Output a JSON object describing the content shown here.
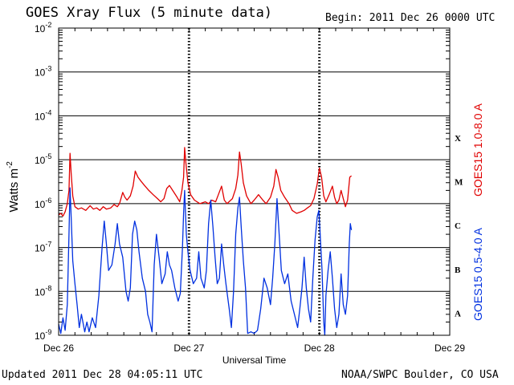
{
  "header": {
    "title": "GOES Xray Flux (5 minute data)",
    "begin": "Begin:  2011 Dec 26 0000 UTC"
  },
  "footer": {
    "updated": "Updated 2011 Dec 28 04:05:11 UTC",
    "credit": "NOAA/SWPC Boulder, CO USA"
  },
  "chart_data": {
    "type": "line",
    "title": "GOES Xray Flux (5 minute data)",
    "xlabel": "Universal Time",
    "ylabel": "Watts m",
    "ylabel_sup": "-2",
    "yscale": "log",
    "ylim": [
      1e-09,
      0.01
    ],
    "xlim": [
      0,
      72
    ],
    "x_unit": "hours since 2011 Dec 26 0000 UTC",
    "x_ticks": [
      {
        "x": 0,
        "label": "Dec 26"
      },
      {
        "x": 24,
        "label": "Dec 27"
      },
      {
        "x": 48,
        "label": "Dec 28"
      },
      {
        "x": 72,
        "label": "Dec 29"
      }
    ],
    "y_ticks": [
      {
        "exp": -2,
        "base": "10",
        "sup": "-2"
      },
      {
        "exp": -3,
        "base": "10",
        "sup": "-3"
      },
      {
        "exp": -4,
        "base": "10",
        "sup": "-4"
      },
      {
        "exp": -5,
        "base": "10",
        "sup": "-5"
      },
      {
        "exp": -6,
        "base": "10",
        "sup": "-6"
      },
      {
        "exp": -7,
        "base": "10",
        "sup": "-7"
      },
      {
        "exp": -8,
        "base": "10",
        "sup": "-8"
      },
      {
        "exp": -9,
        "base": "10",
        "sup": "-9"
      }
    ],
    "flare_classes": [
      {
        "label": "X",
        "exp": -4
      },
      {
        "label": "M",
        "exp": -5
      },
      {
        "label": "C",
        "exp": -6
      },
      {
        "label": "B",
        "exp": -7
      },
      {
        "label": "A",
        "exp": -8
      }
    ],
    "series": [
      {
        "name": "GOES15 1.0-8.0 A",
        "color": "#e00000",
        "points": [
          [
            0.0,
            5.5e-07
          ],
          [
            0.4,
            6e-07
          ],
          [
            0.8,
            5.2e-07
          ],
          [
            1.2,
            6.5e-07
          ],
          [
            1.6,
            1e-06
          ],
          [
            1.9,
            2e-06
          ],
          [
            2.1,
            1.4e-05
          ],
          [
            2.3,
            5e-06
          ],
          [
            2.6,
            1.5e-06
          ],
          [
            3.0,
            8.5e-07
          ],
          [
            3.6,
            7.5e-07
          ],
          [
            4.2,
            8e-07
          ],
          [
            5.0,
            7e-07
          ],
          [
            5.8,
            9e-07
          ],
          [
            6.4,
            7.5e-07
          ],
          [
            7.0,
            8e-07
          ],
          [
            7.6,
            7e-07
          ],
          [
            8.2,
            8.5e-07
          ],
          [
            8.8,
            7.5e-07
          ],
          [
            9.6,
            8e-07
          ],
          [
            10.2,
            9.5e-07
          ],
          [
            10.8,
            8.5e-07
          ],
          [
            11.2,
            1e-06
          ],
          [
            11.8,
            1.8e-06
          ],
          [
            12.2,
            1.4e-06
          ],
          [
            12.6,
            1.2e-06
          ],
          [
            13.2,
            1.5e-06
          ],
          [
            13.7,
            2.5e-06
          ],
          [
            14.1,
            5.5e-06
          ],
          [
            14.6,
            4e-06
          ],
          [
            15.2,
            3.2e-06
          ],
          [
            15.8,
            2.6e-06
          ],
          [
            16.6,
            2e-06
          ],
          [
            17.4,
            1.6e-06
          ],
          [
            18.2,
            1.3e-06
          ],
          [
            18.8,
            1.1e-06
          ],
          [
            19.4,
            1.3e-06
          ],
          [
            19.9,
            2.2e-06
          ],
          [
            20.4,
            2.6e-06
          ],
          [
            21.0,
            2e-06
          ],
          [
            21.8,
            1.4e-06
          ],
          [
            22.3,
            1.1e-06
          ],
          [
            22.7,
            2e-06
          ],
          [
            23.0,
            4e-06
          ],
          [
            23.2,
            1.9e-05
          ],
          [
            23.4,
            9e-06
          ],
          [
            23.8,
            3e-06
          ],
          [
            24.3,
            1.6e-06
          ],
          [
            25.0,
            1.2e-06
          ],
          [
            26.0,
            1e-06
          ],
          [
            27.0,
            1.1e-06
          ],
          [
            27.6,
            1e-06
          ],
          [
            28.2,
            1.2e-06
          ],
          [
            28.9,
            1.1e-06
          ],
          [
            29.4,
            1.6e-06
          ],
          [
            30.0,
            2.5e-06
          ],
          [
            30.5,
            1.2e-06
          ],
          [
            31.0,
            1e-06
          ],
          [
            32.0,
            1.3e-06
          ],
          [
            32.6,
            2.2e-06
          ],
          [
            33.0,
            4.5e-06
          ],
          [
            33.3,
            1.5e-05
          ],
          [
            33.6,
            8e-06
          ],
          [
            34.0,
            3e-06
          ],
          [
            34.6,
            1.5e-06
          ],
          [
            35.4,
            1e-06
          ],
          [
            36.0,
            1.2e-06
          ],
          [
            36.8,
            1.6e-06
          ],
          [
            37.6,
            1.2e-06
          ],
          [
            38.2,
            1e-06
          ],
          [
            39.0,
            1.4e-06
          ],
          [
            39.6,
            2.5e-06
          ],
          [
            40.0,
            6e-06
          ],
          [
            40.4,
            4e-06
          ],
          [
            40.9,
            2e-06
          ],
          [
            41.6,
            1.4e-06
          ],
          [
            42.4,
            1e-06
          ],
          [
            43.0,
            7e-07
          ],
          [
            43.8,
            6e-07
          ],
          [
            44.6,
            6.5e-07
          ],
          [
            45.2,
            7e-07
          ],
          [
            45.8,
            8e-07
          ],
          [
            46.4,
            9e-07
          ],
          [
            47.0,
            1.3e-06
          ],
          [
            47.6,
            2.8e-06
          ],
          [
            48.0,
            6.5e-06
          ],
          [
            48.4,
            4e-06
          ],
          [
            48.8,
            1.5e-06
          ],
          [
            49.2,
            1.1e-06
          ],
          [
            49.8,
            1.6e-06
          ],
          [
            50.4,
            2.5e-06
          ],
          [
            50.8,
            1.4e-06
          ],
          [
            51.2,
            1e-06
          ],
          [
            51.6,
            1.2e-06
          ],
          [
            52.0,
            2e-06
          ],
          [
            52.4,
            1.3e-06
          ],
          [
            52.8,
            8.5e-07
          ],
          [
            53.2,
            1.2e-06
          ],
          [
            53.6,
            4e-06
          ],
          [
            53.9,
            4.3e-06
          ]
        ]
      },
      {
        "name": "GOES15 0.5-4.0 A",
        "color": "#0030e0",
        "points": [
          [
            0.0,
            1.8e-09
          ],
          [
            0.4,
            1.1e-09
          ],
          [
            0.8,
            2.5e-09
          ],
          [
            1.2,
            1.3e-09
          ],
          [
            1.6,
            5e-09
          ],
          [
            1.9,
            2e-07
          ],
          [
            2.1,
            2.3e-06
          ],
          [
            2.3,
            5e-07
          ],
          [
            2.6,
            5e-08
          ],
          [
            3.0,
            1.5e-08
          ],
          [
            3.4,
            5e-09
          ],
          [
            3.8,
            1.5e-09
          ],
          [
            4.2,
            3e-09
          ],
          [
            4.8,
            1.2e-09
          ],
          [
            5.2,
            2e-09
          ],
          [
            5.6,
            1.2e-09
          ],
          [
            6.2,
            2.5e-09
          ],
          [
            6.8,
            1.5e-09
          ],
          [
            7.4,
            8e-09
          ],
          [
            8.0,
            1e-07
          ],
          [
            8.4,
            4e-07
          ],
          [
            8.8,
            1.2e-07
          ],
          [
            9.2,
            3e-08
          ],
          [
            9.8,
            4e-08
          ],
          [
            10.4,
            1.2e-07
          ],
          [
            10.8,
            3.5e-07
          ],
          [
            11.2,
            1.2e-07
          ],
          [
            11.8,
            6e-08
          ],
          [
            12.4,
            1e-08
          ],
          [
            12.8,
            6e-09
          ],
          [
            13.2,
            1.2e-08
          ],
          [
            13.6,
            2e-07
          ],
          [
            14.0,
            4e-07
          ],
          [
            14.4,
            2.5e-07
          ],
          [
            14.8,
            8e-08
          ],
          [
            15.4,
            2e-08
          ],
          [
            16.0,
            1e-08
          ],
          [
            16.4,
            3e-09
          ],
          [
            16.8,
            2e-09
          ],
          [
            17.2,
            1.2e-09
          ],
          [
            17.6,
            4e-08
          ],
          [
            18.0,
            2e-07
          ],
          [
            18.5,
            6e-08
          ],
          [
            19.0,
            1.5e-08
          ],
          [
            19.6,
            2.5e-08
          ],
          [
            20.0,
            8e-08
          ],
          [
            20.4,
            4e-08
          ],
          [
            20.8,
            3e-08
          ],
          [
            21.4,
            1.2e-08
          ],
          [
            22.0,
            6e-09
          ],
          [
            22.4,
            9e-09
          ],
          [
            22.8,
            1e-07
          ],
          [
            23.0,
            6e-07
          ],
          [
            23.2,
            2e-06
          ],
          [
            23.5,
            2e-07
          ],
          [
            23.8,
            8e-08
          ],
          [
            24.2,
            3e-08
          ],
          [
            24.8,
            1.5e-08
          ],
          [
            25.4,
            2e-08
          ],
          [
            25.8,
            8e-08
          ],
          [
            26.2,
            2e-08
          ],
          [
            26.8,
            1.2e-08
          ],
          [
            27.2,
            3e-08
          ],
          [
            27.6,
            3.5e-07
          ],
          [
            28.0,
            1.2e-06
          ],
          [
            28.4,
            3e-07
          ],
          [
            28.8,
            6e-08
          ],
          [
            29.2,
            1.5e-08
          ],
          [
            29.6,
            2e-08
          ],
          [
            30.0,
            1.2e-07
          ],
          [
            30.4,
            4e-08
          ],
          [
            30.8,
            1.5e-08
          ],
          [
            31.4,
            4e-09
          ],
          [
            31.8,
            1.5e-09
          ],
          [
            32.2,
            1e-08
          ],
          [
            32.6,
            2e-07
          ],
          [
            33.0,
            8e-07
          ],
          [
            33.3,
            1.4e-06
          ],
          [
            33.6,
            3e-07
          ],
          [
            34.0,
            5e-08
          ],
          [
            34.4,
            1.2e-08
          ],
          [
            34.8,
            1.1e-09
          ],
          [
            35.4,
            1.2e-09
          ],
          [
            36.0,
            1.1e-09
          ],
          [
            36.6,
            1.3e-09
          ],
          [
            37.2,
            4e-09
          ],
          [
            37.8,
            2e-08
          ],
          [
            38.4,
            1.2e-08
          ],
          [
            39.0,
            5e-09
          ],
          [
            39.4,
            2e-08
          ],
          [
            39.8,
            1.2e-07
          ],
          [
            40.2,
            1.3e-06
          ],
          [
            40.6,
            2e-07
          ],
          [
            41.0,
            3e-08
          ],
          [
            41.6,
            1.5e-08
          ],
          [
            42.2,
            2.5e-08
          ],
          [
            42.8,
            6e-09
          ],
          [
            43.4,
            3e-09
          ],
          [
            44.0,
            1.5e-09
          ],
          [
            44.4,
            4e-09
          ],
          [
            44.8,
            1.2e-08
          ],
          [
            45.2,
            6e-08
          ],
          [
            45.6,
            1.2e-08
          ],
          [
            46.0,
            4e-09
          ],
          [
            46.4,
            2e-09
          ],
          [
            46.8,
            2e-08
          ],
          [
            47.2,
            1.5e-07
          ],
          [
            47.6,
            5e-07
          ],
          [
            47.9,
            7e-07
          ],
          [
            48.2,
            1.5e-07
          ],
          [
            48.5,
            3e-08
          ],
          [
            48.8,
            2e-09
          ],
          [
            49.0,
            1e-09
          ],
          [
            49.2,
            8e-09
          ],
          [
            49.6,
            3e-08
          ],
          [
            50.0,
            8e-08
          ],
          [
            50.4,
            2e-08
          ],
          [
            50.8,
            4e-09
          ],
          [
            51.2,
            1.5e-09
          ],
          [
            51.6,
            3e-09
          ],
          [
            52.0,
            2.5e-08
          ],
          [
            52.4,
            5e-09
          ],
          [
            52.8,
            3e-09
          ],
          [
            53.2,
            8e-09
          ],
          [
            53.5,
            1.2e-07
          ],
          [
            53.7,
            3.5e-07
          ],
          [
            53.9,
            2.5e-07
          ]
        ]
      }
    ]
  }
}
